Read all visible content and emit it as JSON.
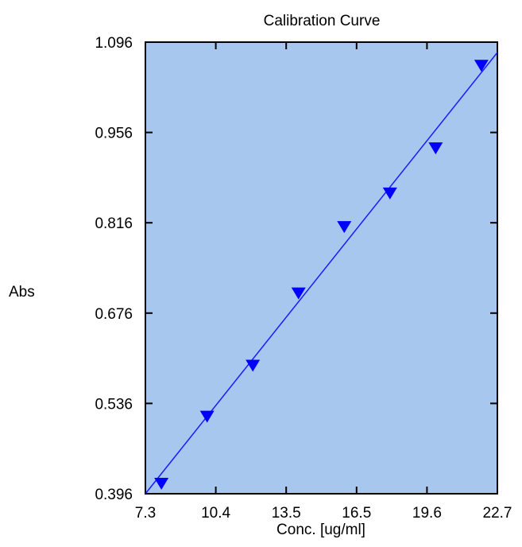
{
  "chart_data": {
    "type": "scatter",
    "title": "Calibration Curve",
    "xlabel": "Conc. [ug/ml]",
    "ylabel": "Abs",
    "xlim": [
      7.3,
      22.7
    ],
    "ylim": [
      0.396,
      1.096
    ],
    "x_ticks": [
      "7.3",
      "10.4",
      "13.5",
      "16.5",
      "19.6",
      "22.7"
    ],
    "y_ticks": [
      "0.396",
      "0.536",
      "0.676",
      "0.816",
      "0.956",
      "1.096"
    ],
    "series": [
      {
        "x": [
          8.0,
          10.0,
          12.0,
          14.0,
          16.0,
          18.0,
          20.0,
          22.0
        ],
        "y": [
          0.412,
          0.516,
          0.595,
          0.707,
          0.81,
          0.862,
          0.932,
          1.06
        ]
      }
    ],
    "fit_line": {
      "x": [
        7.3,
        22.7
      ],
      "y": [
        0.396,
        1.08
      ]
    },
    "grid": false,
    "colors": {
      "plot_background": "#a7c7ef",
      "marker": "#0000ff",
      "fit_line": "#1a1aff",
      "frame": "#000000"
    },
    "marker_shape": "triangle-down"
  }
}
